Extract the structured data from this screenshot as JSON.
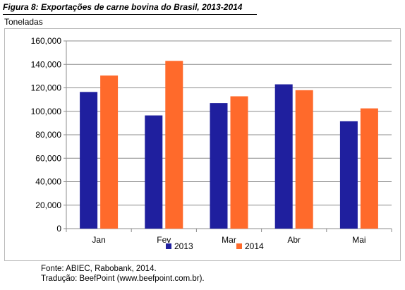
{
  "figure": {
    "title": "Figura 8: Exportações de carne bovina do Brasil, 2013-2014",
    "unit_label": "Toneladas",
    "source_lines": [
      "Fonte: ABIEC, Rabobank, 2014.",
      "Tradução: BeefPoint (www.beefpoint.com.br)."
    ]
  },
  "chart_data": {
    "type": "bar",
    "title": "Figura 8: Exportações de carne bovina do Brasil, 2013-2014",
    "xlabel": "",
    "ylabel": "Toneladas",
    "categories": [
      "Jan",
      "Fev",
      "Mar",
      "Abr",
      "Mai"
    ],
    "series": [
      {
        "name": "2013",
        "color": "#1f1f9e",
        "values": [
          116500,
          96500,
          107000,
          123000,
          91500
        ]
      },
      {
        "name": "2014",
        "color": "#ff6a2b",
        "values": [
          130500,
          143000,
          112800,
          118000,
          102500
        ]
      }
    ],
    "ylim": [
      0,
      160000
    ],
    "yticks": [
      0,
      20000,
      40000,
      60000,
      80000,
      100000,
      120000,
      140000,
      160000
    ],
    "ytick_labels": [
      "0",
      "20,000",
      "40,000",
      "60,000",
      "80,000",
      "100,000",
      "120,000",
      "140,000",
      "160,000"
    ],
    "grid": true,
    "legend_position": "bottom-center"
  }
}
